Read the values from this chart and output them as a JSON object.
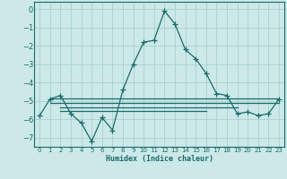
{
  "xlabel": "Humidex (Indice chaleur)",
  "bg_color": "#cce8e8",
  "grid_color": "#aad0d0",
  "line_color": "#1a6b6b",
  "xlim": [
    -0.5,
    23.5
  ],
  "ylim": [
    -7.5,
    0.4
  ],
  "xticks": [
    0,
    1,
    2,
    3,
    4,
    5,
    6,
    7,
    8,
    9,
    10,
    11,
    12,
    13,
    14,
    15,
    16,
    17,
    18,
    19,
    20,
    21,
    22,
    23
  ],
  "yticks": [
    0,
    -1,
    -2,
    -3,
    -4,
    -5,
    -6,
    -7
  ],
  "main_line_x": [
    0,
    1,
    2,
    3,
    4,
    5,
    6,
    7,
    8,
    9,
    10,
    11,
    12,
    13,
    14,
    15,
    16,
    17,
    18,
    19,
    20,
    21,
    22,
    23
  ],
  "main_line_y": [
    -5.8,
    -4.9,
    -4.7,
    -5.7,
    -6.2,
    -7.2,
    -5.9,
    -6.6,
    -4.4,
    -3.0,
    -1.8,
    -1.7,
    -0.1,
    -0.8,
    -2.2,
    -2.7,
    -3.5,
    -4.6,
    -4.7,
    -5.7,
    -5.6,
    -5.8,
    -5.7,
    -4.9
  ],
  "flat_line1_x": [
    1,
    23
  ],
  "flat_line1_y": [
    -4.85,
    -4.85
  ],
  "flat_line2_x": [
    1,
    23
  ],
  "flat_line2_y": [
    -5.1,
    -5.1
  ],
  "flat_line3_x": [
    2,
    19
  ],
  "flat_line3_y": [
    -5.35,
    -5.35
  ],
  "flat_line4_x": [
    2,
    16
  ],
  "flat_line4_y": [
    -5.55,
    -5.55
  ]
}
